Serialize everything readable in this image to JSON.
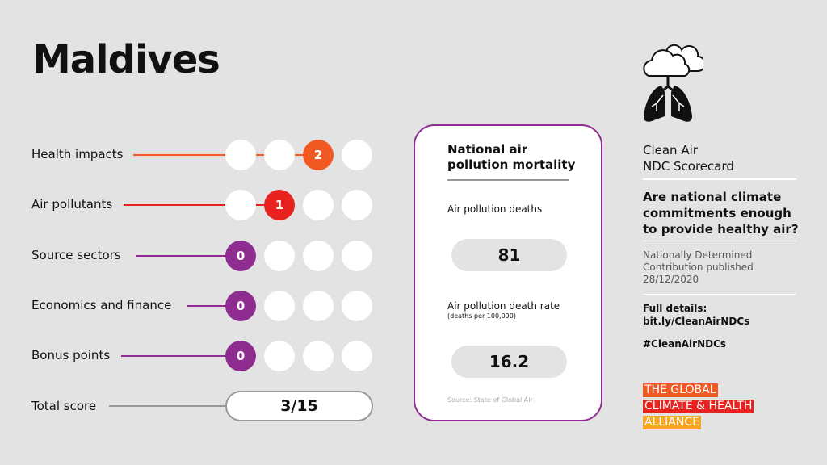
{
  "title": "Maldives",
  "colors": {
    "health": "#f05a22",
    "pollutants": "#e8231f",
    "purple": "#8e2c8f"
  },
  "rows": [
    {
      "label": "Health impacts",
      "score": 2
    },
    {
      "label": "Air pollutants",
      "score": 1
    },
    {
      "label": "Source sectors",
      "score": 0
    },
    {
      "label": "Economics and finance",
      "score": 0
    },
    {
      "label": "Bonus points",
      "score": 0
    }
  ],
  "total": {
    "label": "Total score",
    "value": "3/15"
  },
  "card": {
    "title_line1": "National air",
    "title_line2": "pollution mortality",
    "deaths_label": "Air pollution deaths",
    "deaths_value": "81",
    "rate_label": "Air pollution death rate",
    "rate_unit": "(deaths per 100,000)",
    "rate_value": "16.2",
    "source": "Source: State of Global Air"
  },
  "side": {
    "icon": "cloud-lungs-icon",
    "heading1": "Clean Air",
    "heading2": "NDC Scorecard",
    "question1": "Are national climate",
    "question2": "commitments enough",
    "question3": "to provide healthy air?",
    "ndc1": "Nationally Determined",
    "ndc2": "Contribution published",
    "ndc_date": "28/12/2020",
    "details": "Full details:",
    "link": "bit.ly/CleanAirNDCs",
    "hashtag": "#CleanAirNDCs",
    "logo1": "THE GLOBAL",
    "logo2": "CLIMATE & HEALTH",
    "logo3": "ALLIANCE"
  }
}
